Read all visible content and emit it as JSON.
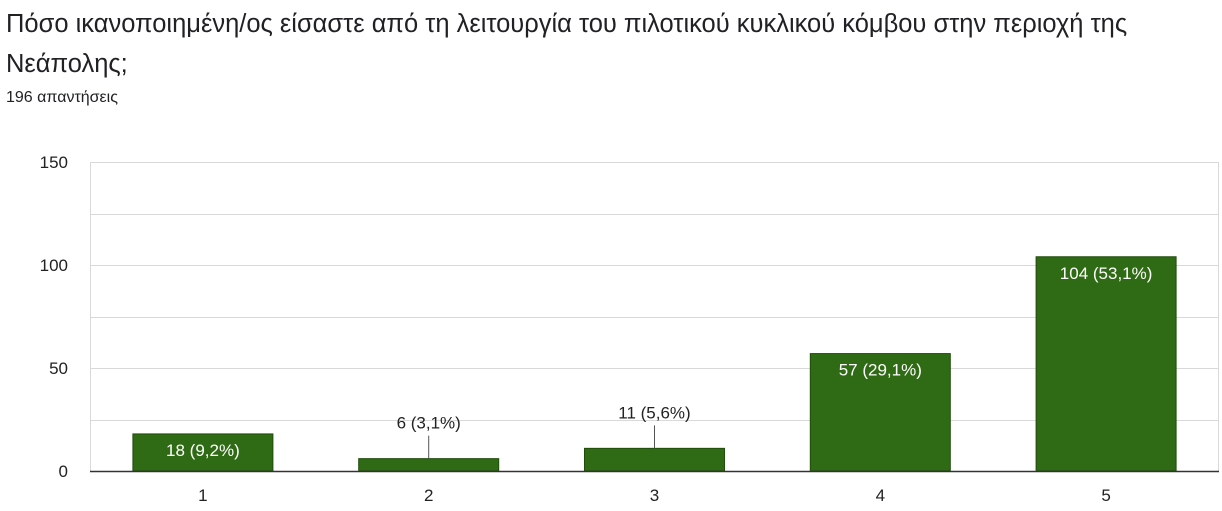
{
  "question": {
    "title": "Πόσο ικανοποιημένη/ος είσαστε από τη λειτουργία του πιλοτικού κυκλικού κόμβου στην περιοχή της Νεάπολης;",
    "responses": "196 απαντήσεις"
  },
  "colors": {
    "bar": "#2f6a14",
    "bar_stroke": "#1f4d0b",
    "grid": "#d9d9d9",
    "axis": "#333333",
    "label_inside": "#ffffff",
    "label_outside": "#222222"
  },
  "chart_data": {
    "type": "bar",
    "categories": [
      "1",
      "2",
      "3",
      "4",
      "5"
    ],
    "values": [
      18,
      6,
      11,
      57,
      104
    ],
    "data_labels": [
      "18 (9,2%)",
      "6 (3,1%)",
      "11 (5,6%)",
      "57 (29,1%)",
      "104 (53,1%)"
    ],
    "y_ticks": [
      "0",
      "50",
      "100",
      "150"
    ],
    "ylim": [
      0,
      150
    ],
    "grid": true,
    "legend": false
  }
}
